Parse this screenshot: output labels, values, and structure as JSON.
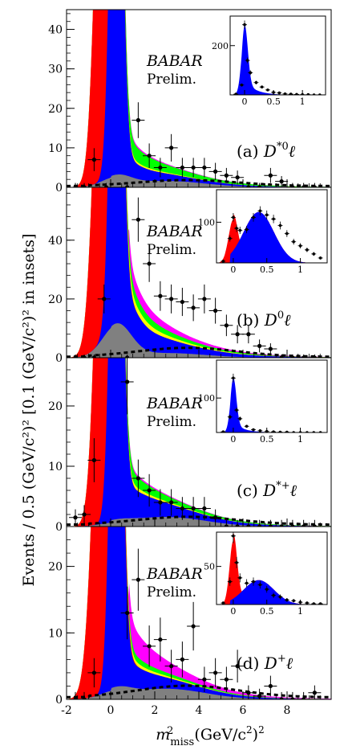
{
  "chart_data": {
    "type": "stacked-histogram",
    "xlabel_main": "m",
    "xlabel_sub": "miss",
    "xlabel_sup": "2",
    "xlabel_units": "(GeV/c",
    "xlabel_units_sup": "2",
    "xlabel_units_close": ")",
    "xlabel_units_sup2": "2",
    "ylabel": "Events / 0.5 (GeV/c²)² [0.1 (GeV/c²)² in insets]",
    "xlim": [
      -2,
      10
    ],
    "xticks": [
      "-2",
      "0",
      "2",
      "4",
      "6",
      "8"
    ],
    "inset_xlim": [
      -0.25,
      1.4
    ],
    "inset_xticks": [
      "0",
      "0.5",
      "1"
    ],
    "colors": {
      "signal": "#0000ff",
      "normalization": "#ff0000",
      "dstarstar": "#00ff00",
      "dstar_feed": "#ffff00",
      "crossfeed": "#ff00ff",
      "background": "#808080",
      "combinatorial_line": "#000000"
    },
    "panels": [
      {
        "id": "a",
        "label": "(a)",
        "channel": "D",
        "channel_sup": "*0",
        "channel_lepton": "ℓ",
        "experiment": "BABAR",
        "status": "Prelim.",
        "ylim": [
          0,
          45
        ],
        "yticks": [
          "0",
          "10",
          "20",
          "30",
          "40"
        ],
        "inset": {
          "ylim": [
            0,
            320
          ],
          "yticks": [
            "200"
          ]
        }
      },
      {
        "id": "b",
        "label": "(b)",
        "channel": "D",
        "channel_sup": "0",
        "channel_lepton": "ℓ",
        "experiment": "BABAR",
        "status": "Prelim.",
        "ylim": [
          0,
          58
        ],
        "yticks": [
          "0",
          "20",
          "40"
        ],
        "inset": {
          "ylim": [
            0,
            180
          ],
          "yticks": [
            "100"
          ]
        }
      },
      {
        "id": "c",
        "label": "(c)",
        "channel": "D",
        "channel_sup": "*+",
        "channel_lepton": "ℓ",
        "experiment": "BABAR",
        "status": "Prelim.",
        "ylim": [
          0,
          28
        ],
        "yticks": [
          "0",
          "10",
          "20"
        ],
        "inset": {
          "ylim": [
            0,
            210
          ],
          "yticks": [
            "100"
          ]
        }
      },
      {
        "id": "d",
        "label": "(d)",
        "channel": "D",
        "channel_sup": "+",
        "channel_lepton": "ℓ",
        "experiment": "BABAR",
        "status": "Prelim.",
        "ylim": [
          0,
          26
        ],
        "yticks": [
          "0",
          "10",
          "20"
        ],
        "inset": {
          "ylim": [
            0,
            95
          ],
          "yticks": [
            "50"
          ]
        }
      }
    ],
    "points_main": [
      [
        [
          -1.6,
          0
        ],
        [
          -1.2,
          0
        ],
        [
          -0.75,
          7
        ],
        [
          -0.2,
          0
        ],
        [
          0.75,
          0
        ],
        [
          1.25,
          17
        ],
        [
          1.75,
          8
        ],
        [
          2.25,
          5
        ],
        [
          2.75,
          10
        ],
        [
          3.25,
          5
        ],
        [
          3.75,
          5
        ],
        [
          4.25,
          5
        ],
        [
          4.75,
          4
        ],
        [
          5.25,
          3
        ],
        [
          5.75,
          2.5
        ],
        [
          6.25,
          0
        ],
        [
          6.75,
          0
        ],
        [
          7.25,
          3
        ],
        [
          7.75,
          1.5
        ],
        [
          8.25,
          0
        ],
        [
          8.75,
          0
        ],
        [
          9.25,
          0
        ]
      ],
      [
        [
          -1.6,
          0
        ],
        [
          -1.2,
          0
        ],
        [
          -0.75,
          0
        ],
        [
          -0.3,
          20
        ],
        [
          0.75,
          0
        ],
        [
          1.25,
          47
        ],
        [
          1.75,
          32
        ],
        [
          2.25,
          21
        ],
        [
          2.75,
          20
        ],
        [
          3.25,
          19
        ],
        [
          3.75,
          17
        ],
        [
          4.25,
          20
        ],
        [
          4.75,
          16
        ],
        [
          5.25,
          11
        ],
        [
          5.75,
          8
        ],
        [
          6.25,
          8
        ],
        [
          6.75,
          4
        ],
        [
          7.25,
          3
        ],
        [
          7.75,
          0
        ],
        [
          8.25,
          0
        ],
        [
          8.75,
          0
        ],
        [
          9.25,
          0
        ]
      ],
      [
        [
          -1.6,
          1.5
        ],
        [
          -1.2,
          2
        ],
        [
          -0.75,
          11
        ],
        [
          0.75,
          24
        ],
        [
          1.25,
          8
        ],
        [
          1.75,
          6
        ],
        [
          2.25,
          4
        ],
        [
          2.75,
          4
        ],
        [
          3.25,
          3
        ],
        [
          3.75,
          3
        ],
        [
          4.25,
          3
        ],
        [
          4.75,
          1.5
        ],
        [
          5.25,
          0
        ],
        [
          5.75,
          0
        ],
        [
          6.25,
          0
        ],
        [
          6.75,
          0
        ],
        [
          7.25,
          0
        ],
        [
          7.75,
          0
        ],
        [
          8.25,
          0
        ],
        [
          8.75,
          0
        ],
        [
          9.25,
          0
        ]
      ],
      [
        [
          -1.6,
          0
        ],
        [
          -1.2,
          0
        ],
        [
          -0.75,
          4
        ],
        [
          0.75,
          13
        ],
        [
          1.25,
          18
        ],
        [
          1.75,
          8
        ],
        [
          2.25,
          9
        ],
        [
          2.75,
          5
        ],
        [
          3.25,
          6
        ],
        [
          3.75,
          11
        ],
        [
          4.25,
          3
        ],
        [
          4.75,
          4
        ],
        [
          5.25,
          3
        ],
        [
          5.75,
          5
        ],
        [
          6.25,
          1
        ],
        [
          6.75,
          0.5
        ],
        [
          7.25,
          2
        ],
        [
          7.75,
          0
        ],
        [
          8.25,
          0
        ],
        [
          8.75,
          0
        ],
        [
          9.25,
          1
        ]
      ]
    ],
    "points_inset": [
      [
        [
          -0.15,
          3
        ],
        [
          -0.05,
          40
        ],
        [
          0.0,
          285
        ],
        [
          0.05,
          140
        ],
        [
          0.1,
          90
        ],
        [
          0.2,
          50
        ],
        [
          0.3,
          32
        ],
        [
          0.4,
          20
        ],
        [
          0.5,
          10
        ],
        [
          0.6,
          8
        ],
        [
          0.7,
          4
        ],
        [
          0.8,
          3
        ],
        [
          0.9,
          2
        ],
        [
          1.0,
          1
        ],
        [
          1.1,
          1
        ],
        [
          1.2,
          0
        ],
        [
          1.3,
          0
        ]
      ],
      [
        [
          -0.15,
          4
        ],
        [
          -0.05,
          60
        ],
        [
          0.0,
          112
        ],
        [
          0.05,
          85
        ],
        [
          0.1,
          80
        ],
        [
          0.2,
          82
        ],
        [
          0.3,
          112
        ],
        [
          0.4,
          128
        ],
        [
          0.5,
          118
        ],
        [
          0.6,
          108
        ],
        [
          0.7,
          92
        ],
        [
          0.8,
          72
        ],
        [
          0.9,
          52
        ],
        [
          1.0,
          42
        ],
        [
          1.1,
          32
        ],
        [
          1.2,
          22
        ],
        [
          1.3,
          12
        ]
      ],
      [
        [
          -0.15,
          2
        ],
        [
          -0.05,
          45
        ],
        [
          0.0,
          158
        ],
        [
          0.05,
          65
        ],
        [
          0.1,
          40
        ],
        [
          0.2,
          18
        ],
        [
          0.3,
          8
        ],
        [
          0.4,
          5
        ],
        [
          0.5,
          3
        ],
        [
          0.6,
          2
        ],
        [
          0.7,
          1
        ],
        [
          0.8,
          1
        ],
        [
          0.9,
          0
        ],
        [
          1.0,
          0
        ],
        [
          1.1,
          0
        ],
        [
          1.2,
          0
        ],
        [
          1.3,
          0
        ]
      ],
      [
        [
          -0.15,
          2
        ],
        [
          -0.05,
          30
        ],
        [
          0.0,
          90
        ],
        [
          0.05,
          55
        ],
        [
          0.1,
          35
        ],
        [
          0.2,
          28
        ],
        [
          0.3,
          30
        ],
        [
          0.4,
          26
        ],
        [
          0.5,
          20
        ],
        [
          0.6,
          12
        ],
        [
          0.7,
          10
        ],
        [
          0.8,
          6
        ],
        [
          0.9,
          5
        ],
        [
          1.0,
          3
        ],
        [
          1.1,
          2
        ],
        [
          1.2,
          1
        ],
        [
          1.3,
          1
        ]
      ]
    ]
  }
}
